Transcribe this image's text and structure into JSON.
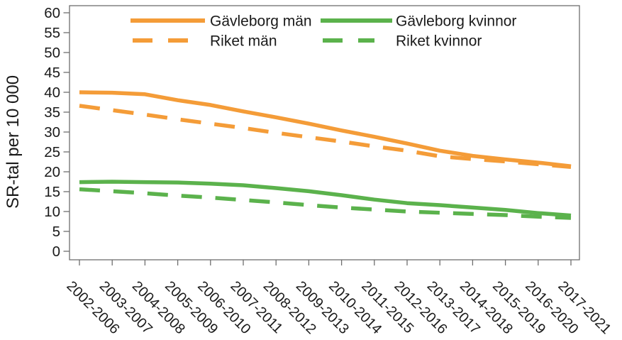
{
  "chart_data": {
    "type": "line",
    "title": "",
    "ylabel": "SR-tal per 10 000",
    "xlabel": "",
    "ylim": [
      0,
      60
    ],
    "ytick_step": 5,
    "grid": false,
    "legend_position": "top-inside",
    "legend_columns": 2,
    "categories": [
      "2002-2006",
      "2003-2007",
      "2004-2008",
      "2005-2009",
      "2006-2010",
      "2007-2011",
      "2008-2012",
      "2009-2013",
      "2010-2014",
      "2011-2015",
      "2012-2016",
      "2013-2017",
      "2014-2018",
      "2015-2019",
      "2016-2020",
      "2017-2021"
    ],
    "series": [
      {
        "name": "Gävleborg män",
        "color": "#F49C38",
        "dashed": false,
        "values": [
          40.0,
          39.9,
          39.5,
          38.0,
          36.8,
          35.2,
          33.7,
          32.1,
          30.4,
          28.8,
          27.1,
          25.3,
          24.0,
          23.1,
          22.3,
          21.4
        ]
      },
      {
        "name": "Riket män",
        "color": "#F49C38",
        "dashed": true,
        "values": [
          36.6,
          35.5,
          34.4,
          33.2,
          32.1,
          31.0,
          29.8,
          28.7,
          27.6,
          26.4,
          25.3,
          23.9,
          23.2,
          22.6,
          21.9,
          21.2
        ]
      },
      {
        "name": "Gävleborg kvinnor",
        "color": "#5BB24C",
        "dashed": false,
        "values": [
          17.4,
          17.5,
          17.4,
          17.3,
          17.0,
          16.6,
          15.9,
          15.1,
          14.1,
          13.0,
          12.1,
          11.6,
          11.0,
          10.4,
          9.6,
          9.0
        ]
      },
      {
        "name": "Riket kvinnor",
        "color": "#5BB24C",
        "dashed": true,
        "values": [
          15.6,
          15.1,
          14.6,
          14.0,
          13.5,
          12.9,
          12.3,
          11.6,
          11.0,
          10.5,
          10.0,
          9.7,
          9.4,
          9.1,
          8.7,
          8.4
        ]
      }
    ]
  },
  "colors": {
    "orange": "#F49C38",
    "green": "#5BB24C",
    "axis": "#6E6E6E",
    "text": "#1A1A1A",
    "background": "#FFFFFF"
  }
}
